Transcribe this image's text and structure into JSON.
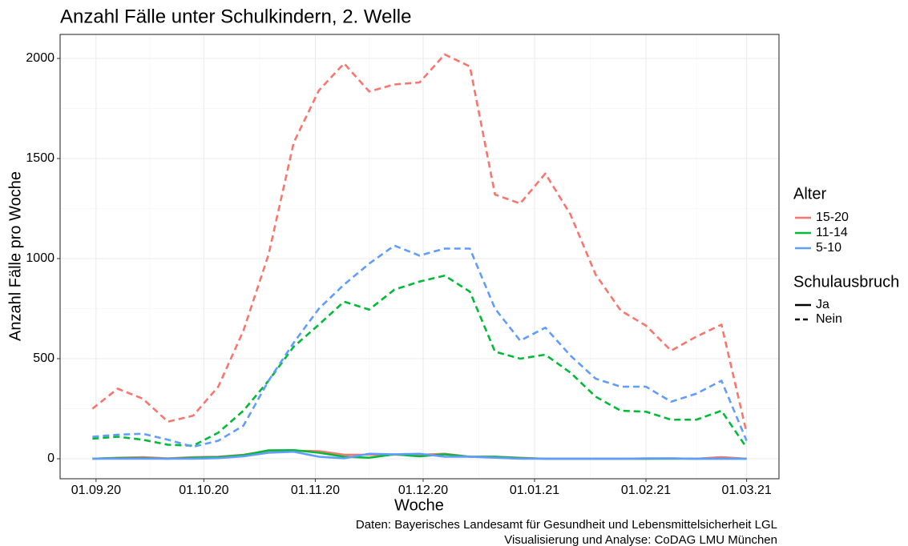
{
  "chart_data": {
    "type": "line",
    "title": "Anzahl Fälle unter Schulkindern, 2. Welle",
    "x_label": "Woche",
    "y_label": "Anzahl Fälle pro Woche",
    "caption": [
      "Daten: Bayerisches Landesamt für Gesundheit und Lebensmittelsicherheit LGL",
      "Visualisierung und Analyse: CoDAG LMU München"
    ],
    "legend_titles": {
      "color": "Alter",
      "linetype": "Schulausbruch"
    },
    "legend_position": "right",
    "grid": true,
    "x": [
      "31.08.20",
      "07.09.20",
      "14.09.20",
      "21.09.20",
      "28.09.20",
      "05.10.20",
      "12.10.20",
      "19.10.20",
      "26.10.20",
      "02.11.20",
      "09.11.20",
      "16.11.20",
      "23.11.20",
      "30.11.20",
      "07.12.20",
      "14.12.20",
      "21.12.20",
      "28.12.20",
      "04.01.21",
      "11.01.21",
      "18.01.21",
      "25.01.21",
      "01.02.21",
      "08.02.21",
      "15.02.21",
      "22.02.21",
      "01.03.21"
    ],
    "xlim": [
      "22.08.20",
      "10.03.21"
    ],
    "xticks": [
      "01.09.20",
      "01.10.20",
      "01.11.20",
      "01.12.20",
      "01.01.21",
      "01.02.21",
      "01.03.21"
    ],
    "ylim": [
      -100,
      2120
    ],
    "yticks": [
      0,
      500,
      1000,
      1500,
      2000
    ],
    "series": [
      {
        "name": "15-20",
        "schulausbruch": "Ja",
        "color": "#F8766D",
        "values": [
          0,
          5,
          8,
          2,
          8,
          10,
          20,
          40,
          40,
          38,
          20,
          20,
          20,
          20,
          25,
          10,
          10,
          5,
          0,
          0,
          0,
          0,
          0,
          2,
          0,
          8,
          0
        ]
      },
      {
        "name": "11-14",
        "schulausbruch": "Ja",
        "color": "#00BA38",
        "values": [
          0,
          3,
          3,
          0,
          5,
          8,
          18,
          42,
          43,
          30,
          10,
          5,
          22,
          12,
          22,
          10,
          10,
          3,
          0,
          0,
          0,
          0,
          0,
          0,
          0,
          0,
          0
        ]
      },
      {
        "name": "5-10",
        "schulausbruch": "Ja",
        "color": "#619CFF",
        "values": [
          0,
          0,
          0,
          0,
          0,
          3,
          12,
          30,
          35,
          10,
          2,
          25,
          22,
          25,
          10,
          10,
          5,
          0,
          0,
          0,
          0,
          0,
          2,
          2,
          0,
          0,
          0
        ]
      },
      {
        "name": "15-20",
        "schulausbruch": "Nein",
        "color": "#F8766D",
        "values": [
          250,
          350,
          300,
          185,
          215,
          360,
          640,
          1020,
          1580,
          1840,
          1975,
          1835,
          1870,
          1880,
          2020,
          1960,
          1320,
          1275,
          1425,
          1220,
          920,
          740,
          665,
          540,
          610,
          670,
          130
        ]
      },
      {
        "name": "11-14",
        "schulausbruch": "Nein",
        "color": "#00BA38",
        "values": [
          100,
          110,
          95,
          70,
          65,
          130,
          240,
          390,
          560,
          670,
          785,
          745,
          845,
          885,
          915,
          835,
          535,
          500,
          520,
          430,
          310,
          240,
          235,
          195,
          195,
          240,
          55
        ]
      },
      {
        "name": "5-10",
        "schulausbruch": "Nein",
        "color": "#619CFF",
        "values": [
          110,
          120,
          125,
          95,
          60,
          90,
          165,
          390,
          580,
          750,
          870,
          975,
          1065,
          1015,
          1050,
          1050,
          750,
          590,
          655,
          515,
          400,
          360,
          360,
          285,
          325,
          390,
          90
        ]
      }
    ]
  }
}
